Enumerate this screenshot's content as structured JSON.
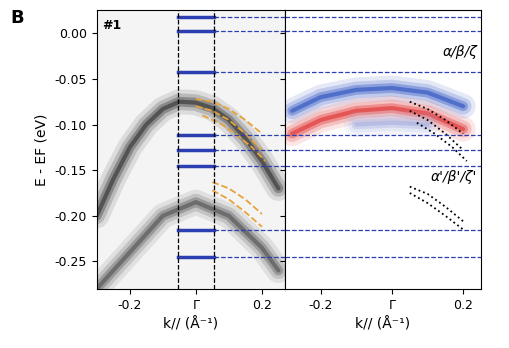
{
  "panel_label": "B",
  "chart_data": [
    {
      "type": "line",
      "annotations": [
        "#1"
      ],
      "xlabel": "k// (Å⁻¹)",
      "ylabel": "E - EF (eV)",
      "xlim": [
        -0.3,
        0.27
      ],
      "ylim": [
        -0.28,
        0.025
      ],
      "xticks": [
        {
          "value": -0.2,
          "label": "-0.2"
        },
        {
          "value": 0,
          "label": "Γ"
        },
        0.2
      ],
      "yticks": [
        {
          "value": 0,
          "label": "0.00"
        },
        {
          "value": -0.05,
          "label": "-0.05"
        },
        {
          "value": -0.1,
          "label": "-0.10"
        },
        {
          "value": -0.15,
          "label": "-0.15"
        },
        {
          "value": -0.2,
          "label": "-0.20"
        },
        {
          "value": -0.25,
          "label": "-0.25"
        }
      ],
      "levels": [
        0.018,
        0.003,
        -0.042,
        -0.112,
        -0.128,
        -0.145,
        -0.215,
        -0.245
      ],
      "level_color": "#2b3fb0",
      "cuts": [
        -0.055,
        0.055
      ],
      "series": [
        {
          "type": "band",
          "color": "#303030",
          "x": [
            -0.3,
            -0.25,
            -0.2,
            -0.15,
            -0.1,
            -0.05,
            0.0,
            0.05,
            0.1,
            0.15,
            0.2,
            0.25
          ],
          "values": [
            -0.2,
            -0.16,
            -0.125,
            -0.1,
            -0.083,
            -0.075,
            -0.076,
            -0.082,
            -0.095,
            -0.115,
            -0.14,
            -0.17
          ]
        },
        {
          "type": "band",
          "color": "#505050",
          "x": [
            -0.3,
            -0.2,
            -0.1,
            0.0,
            0.1,
            0.2,
            0.25
          ],
          "values": [
            -0.28,
            -0.24,
            -0.2,
            -0.185,
            -0.2,
            -0.235,
            -0.26
          ]
        },
        {
          "type": "line",
          "color": "#e8a33a",
          "line_style": "dashed",
          "x": [
            0.0,
            0.05,
            0.1,
            0.15,
            0.2
          ],
          "values": [
            -0.072,
            -0.075,
            -0.083,
            -0.095,
            -0.11
          ]
        },
        {
          "type": "line",
          "color": "#e8a33a",
          "line_style": "dashed",
          "x": [
            0.0,
            0.05,
            0.1,
            0.15,
            0.2
          ],
          "values": [
            -0.08,
            -0.085,
            -0.095,
            -0.11,
            -0.128
          ]
        },
        {
          "type": "line",
          "color": "#e8a33a",
          "line_style": "dashed",
          "x": [
            0.02,
            0.07,
            0.12,
            0.17,
            0.21
          ],
          "values": [
            -0.09,
            -0.098,
            -0.11,
            -0.125,
            -0.14
          ]
        },
        {
          "type": "line",
          "color": "#e8a33a",
          "line_style": "dashed",
          "x": [
            0.05,
            0.1,
            0.15,
            0.2
          ],
          "values": [
            -0.163,
            -0.17,
            -0.182,
            -0.198
          ]
        },
        {
          "type": "line",
          "color": "#e8a33a",
          "line_style": "dashed",
          "x": [
            0.05,
            0.1,
            0.15,
            0.2
          ],
          "values": [
            -0.172,
            -0.182,
            -0.196,
            -0.212
          ]
        }
      ]
    },
    {
      "type": "line",
      "annotations": [
        "α/β/ζ",
        "α'/β'/ζ'"
      ],
      "xlabel": "k// (Å⁻¹)",
      "xlim": [
        -0.3,
        0.25
      ],
      "ylim": [
        -0.28,
        0.025
      ],
      "xticks": [
        {
          "value": -0.2,
          "label": "-0.2"
        },
        {
          "value": 0,
          "label": "Γ"
        },
        0.2
      ],
      "tick_labels": "x",
      "series": [
        {
          "type": "band",
          "color": "#2a4fc0",
          "x": [
            -0.28,
            -0.2,
            -0.1,
            0.0,
            0.1,
            0.2
          ],
          "values": [
            -0.085,
            -0.07,
            -0.062,
            -0.06,
            -0.065,
            -0.08
          ]
        },
        {
          "type": "band",
          "color": "#e03030",
          "x": [
            -0.28,
            -0.2,
            -0.1,
            0.0,
            0.1,
            0.2
          ],
          "values": [
            -0.11,
            -0.095,
            -0.085,
            -0.082,
            -0.088,
            -0.105
          ]
        },
        {
          "type": "band",
          "color": "#a8b0e0",
          "x": [
            -0.1,
            0.0,
            0.1
          ],
          "values": [
            -0.1,
            -0.098,
            -0.1
          ]
        },
        {
          "type": "line",
          "color": "#000000",
          "line_style": "dotted",
          "x": [
            0.05,
            0.1,
            0.15,
            0.2
          ],
          "values": [
            -0.075,
            -0.083,
            -0.095,
            -0.11
          ]
        },
        {
          "type": "line",
          "color": "#000000",
          "line_style": "dotted",
          "x": [
            0.05,
            0.1,
            0.15,
            0.2
          ],
          "values": [
            -0.085,
            -0.095,
            -0.11,
            -0.128
          ]
        },
        {
          "type": "line",
          "color": "#000000",
          "line_style": "dotted",
          "x": [
            0.07,
            0.12,
            0.17,
            0.21
          ],
          "values": [
            -0.098,
            -0.11,
            -0.125,
            -0.14
          ]
        },
        {
          "type": "line",
          "color": "#000000",
          "line_style": "dotted",
          "x": [
            0.05,
            0.1,
            0.15,
            0.2
          ],
          "values": [
            -0.168,
            -0.176,
            -0.19,
            -0.206
          ]
        },
        {
          "type": "line",
          "color": "#000000",
          "line_style": "dotted",
          "x": [
            0.05,
            0.1,
            0.15,
            0.2
          ],
          "values": [
            -0.175,
            -0.186,
            -0.2,
            -0.215
          ]
        }
      ]
    }
  ]
}
